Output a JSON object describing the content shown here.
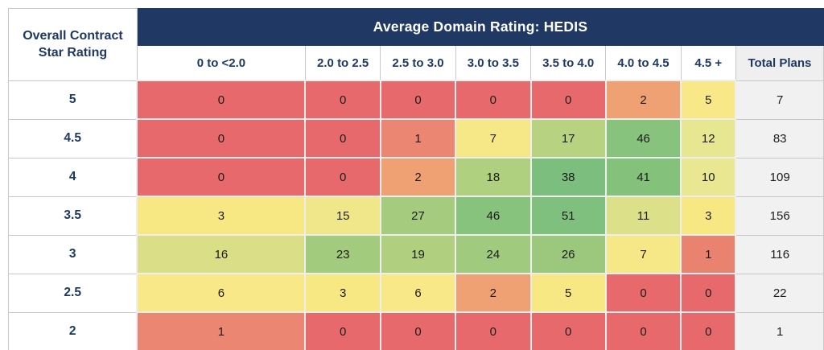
{
  "chart_data": {
    "type": "heatmap",
    "title": "Average Domain Rating: HEDIS",
    "row_axis_label": "Overall Contract Star Rating",
    "columns": [
      "0 to <2.0",
      "2.0 to 2.5",
      "2.5 to 3.0",
      "3.0 to 3.5",
      "3.5 to 4.0",
      "4.0 to 4.5",
      "4.5 +"
    ],
    "total_column_label": "Total Plans",
    "row_categories": [
      "5",
      "4.5",
      "4",
      "3.5",
      "3",
      "2.5",
      "2"
    ],
    "values": [
      [
        0,
        0,
        0,
        0,
        0,
        2,
        5
      ],
      [
        0,
        0,
        1,
        7,
        17,
        46,
        12
      ],
      [
        0,
        0,
        2,
        18,
        38,
        41,
        10
      ],
      [
        3,
        15,
        27,
        46,
        51,
        11,
        3
      ],
      [
        16,
        23,
        19,
        24,
        26,
        7,
        1
      ],
      [
        6,
        3,
        6,
        2,
        5,
        0,
        0
      ],
      [
        1,
        0,
        0,
        0,
        0,
        0,
        0
      ]
    ],
    "totals": [
      7,
      83,
      109,
      156,
      116,
      22,
      1
    ],
    "color_scale": {
      "low": "#E8696B",
      "mid": "#F8E884",
      "high": "#7CBE7D"
    },
    "legend": "none",
    "grid": "on"
  },
  "table": {
    "corner": {
      "line1": "Overall Contract",
      "line2": "Star Rating"
    },
    "band_title": "Average Domain Rating: HEDIS",
    "columns": [
      "0 to <2.0",
      "2.0 to 2.5",
      "2.5 to 3.0",
      "3.0 to 3.5",
      "3.5 to 4.0",
      "4.0 to 4.5",
      "4.5 +"
    ],
    "total_column": "Total Plans",
    "rows": [
      {
        "label": "5",
        "total": "7",
        "cells": [
          {
            "value": "0",
            "color": "#E8696B"
          },
          {
            "value": "0",
            "color": "#E8696B"
          },
          {
            "value": "0",
            "color": "#E8696B"
          },
          {
            "value": "0",
            "color": "#E8696B"
          },
          {
            "value": "0",
            "color": "#E8696B"
          },
          {
            "value": "2",
            "color": "#F0A173"
          },
          {
            "value": "5",
            "color": "#F8E887"
          }
        ]
      },
      {
        "label": "4.5",
        "total": "83",
        "cells": [
          {
            "value": "0",
            "color": "#E8696B"
          },
          {
            "value": "0",
            "color": "#E8696B"
          },
          {
            "value": "1",
            "color": "#EB8672"
          },
          {
            "value": "7",
            "color": "#F7E887"
          },
          {
            "value": "17",
            "color": "#B7D382"
          },
          {
            "value": "46",
            "color": "#88C37D"
          },
          {
            "value": "12",
            "color": "#E8E791"
          }
        ]
      },
      {
        "label": "4",
        "total": "109",
        "cells": [
          {
            "value": "0",
            "color": "#E8696B"
          },
          {
            "value": "0",
            "color": "#E8696B"
          },
          {
            "value": "2",
            "color": "#F0A173"
          },
          {
            "value": "18",
            "color": "#AFD07E"
          },
          {
            "value": "38",
            "color": "#7CBE7D"
          },
          {
            "value": "41",
            "color": "#84C17B"
          },
          {
            "value": "10",
            "color": "#EAE792"
          }
        ]
      },
      {
        "label": "3.5",
        "total": "156",
        "cells": [
          {
            "value": "3",
            "color": "#F8E884"
          },
          {
            "value": "15",
            "color": "#F0E78B"
          },
          {
            "value": "27",
            "color": "#A5CC7E"
          },
          {
            "value": "46",
            "color": "#88C37D"
          },
          {
            "value": "51",
            "color": "#80C07E"
          },
          {
            "value": "11",
            "color": "#DCE189"
          },
          {
            "value": "3",
            "color": "#F8E884"
          }
        ]
      },
      {
        "label": "3",
        "total": "116",
        "cells": [
          {
            "value": "16",
            "color": "#DADE86"
          },
          {
            "value": "23",
            "color": "#A3CB7E"
          },
          {
            "value": "19",
            "color": "#B0D080"
          },
          {
            "value": "24",
            "color": "#A0CA7D"
          },
          {
            "value": "26",
            "color": "#9CC87E"
          },
          {
            "value": "7",
            "color": "#F7E887"
          },
          {
            "value": "1",
            "color": "#E98370"
          }
        ]
      },
      {
        "label": "2.5",
        "total": "22",
        "cells": [
          {
            "value": "6",
            "color": "#F8E887"
          },
          {
            "value": "3",
            "color": "#F8E884"
          },
          {
            "value": "6",
            "color": "#F8E887"
          },
          {
            "value": "2",
            "color": "#F0A173"
          },
          {
            "value": "5",
            "color": "#F8E884"
          },
          {
            "value": "0",
            "color": "#E8696B"
          },
          {
            "value": "0",
            "color": "#E8696B"
          }
        ]
      },
      {
        "label": "2",
        "total": "1",
        "cells": [
          {
            "value": "1",
            "color": "#EB8672"
          },
          {
            "value": "0",
            "color": "#E8696B"
          },
          {
            "value": "0",
            "color": "#E8696B"
          },
          {
            "value": "0",
            "color": "#E8696B"
          },
          {
            "value": "0",
            "color": "#E8696B"
          },
          {
            "value": "0",
            "color": "#E8696B"
          },
          {
            "value": "0",
            "color": "#E8696B"
          }
        ]
      }
    ]
  },
  "colors": {
    "band_bg": "#1F3864",
    "band_text": "#FFFFFF",
    "label_text": "#1F3864",
    "total_bg": "#F1F1F1"
  }
}
